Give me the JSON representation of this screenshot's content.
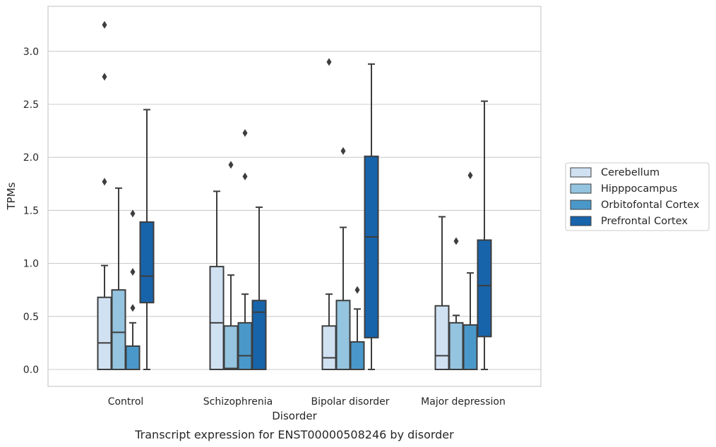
{
  "caption": "Transcript expression for ENST00000508246 by disorder",
  "chart_data": {
    "type": "box",
    "xlabel": "Disorder",
    "ylabel": "TPMs",
    "ylim": [
      -0.16,
      3.43
    ],
    "yticks": [
      "0.0",
      "0.5",
      "1.0",
      "1.5",
      "2.0",
      "2.5",
      "3.0"
    ],
    "grid": "horizontal",
    "legend_position": "right",
    "categories": [
      "Control",
      "Schizophrenia",
      "Bipolar disorder",
      "Major depression"
    ],
    "series": [
      {
        "name": "Cerebellum",
        "color": "#d0e1f2",
        "boxes": [
          {
            "whisker_low": 0.0,
            "q1": 0.0,
            "median": 0.25,
            "q3": 0.68,
            "whisker_high": 0.98,
            "outliers": [
              1.77,
              2.76,
              3.25
            ]
          },
          {
            "whisker_low": 0.0,
            "q1": 0.0,
            "median": 0.44,
            "q3": 0.97,
            "whisker_high": 1.68,
            "outliers": []
          },
          {
            "whisker_low": 0.0,
            "q1": 0.0,
            "median": 0.11,
            "q3": 0.41,
            "whisker_high": 0.71,
            "outliers": [
              2.9
            ]
          },
          {
            "whisker_low": 0.0,
            "q1": 0.0,
            "median": 0.13,
            "q3": 0.6,
            "whisker_high": 1.44,
            "outliers": []
          }
        ]
      },
      {
        "name": "Hipppocampus",
        "color": "#94c4df",
        "boxes": [
          {
            "whisker_low": 0.0,
            "q1": 0.0,
            "median": 0.35,
            "q3": 0.75,
            "whisker_high": 1.71,
            "outliers": []
          },
          {
            "whisker_low": 0.0,
            "q1": 0.0,
            "median": 0.01,
            "q3": 0.41,
            "whisker_high": 0.89,
            "outliers": [
              1.93
            ]
          },
          {
            "whisker_low": 0.0,
            "q1": 0.0,
            "median": 0.0,
            "q3": 0.65,
            "whisker_high": 1.34,
            "outliers": [
              2.06
            ]
          },
          {
            "whisker_low": 0.0,
            "q1": 0.0,
            "median": 0.0,
            "q3": 0.44,
            "whisker_high": 0.51,
            "outliers": [
              1.21
            ]
          }
        ]
      },
      {
        "name": "Orbitofontal Cortex",
        "color": "#4a98c9",
        "boxes": [
          {
            "whisker_low": 0.0,
            "q1": 0.0,
            "median": 0.0,
            "q3": 0.22,
            "whisker_high": 0.44,
            "outliers": [
              0.58,
              0.92,
              1.47
            ]
          },
          {
            "whisker_low": 0.0,
            "q1": 0.0,
            "median": 0.13,
            "q3": 0.44,
            "whisker_high": 0.71,
            "outliers": [
              1.82,
              2.23
            ]
          },
          {
            "whisker_low": 0.0,
            "q1": 0.0,
            "median": 0.0,
            "q3": 0.26,
            "whisker_high": 0.57,
            "outliers": [
              0.75
            ]
          },
          {
            "whisker_low": 0.0,
            "q1": 0.0,
            "median": 0.0,
            "q3": 0.42,
            "whisker_high": 0.91,
            "outliers": [
              1.83
            ]
          }
        ]
      },
      {
        "name": "Prefrontal Cortex",
        "color": "#1764ab",
        "boxes": [
          {
            "whisker_low": 0.0,
            "q1": 0.63,
            "median": 0.88,
            "q3": 1.39,
            "whisker_high": 2.45,
            "outliers": []
          },
          {
            "whisker_low": 0.0,
            "q1": 0.0,
            "median": 0.54,
            "q3": 0.65,
            "whisker_high": 1.53,
            "outliers": []
          },
          {
            "whisker_low": 0.0,
            "q1": 0.3,
            "median": 1.25,
            "q3": 2.01,
            "whisker_high": 2.88,
            "outliers": []
          },
          {
            "whisker_low": 0.0,
            "q1": 0.31,
            "median": 0.79,
            "q3": 1.22,
            "whisker_high": 2.53,
            "outliers": []
          }
        ]
      }
    ]
  }
}
